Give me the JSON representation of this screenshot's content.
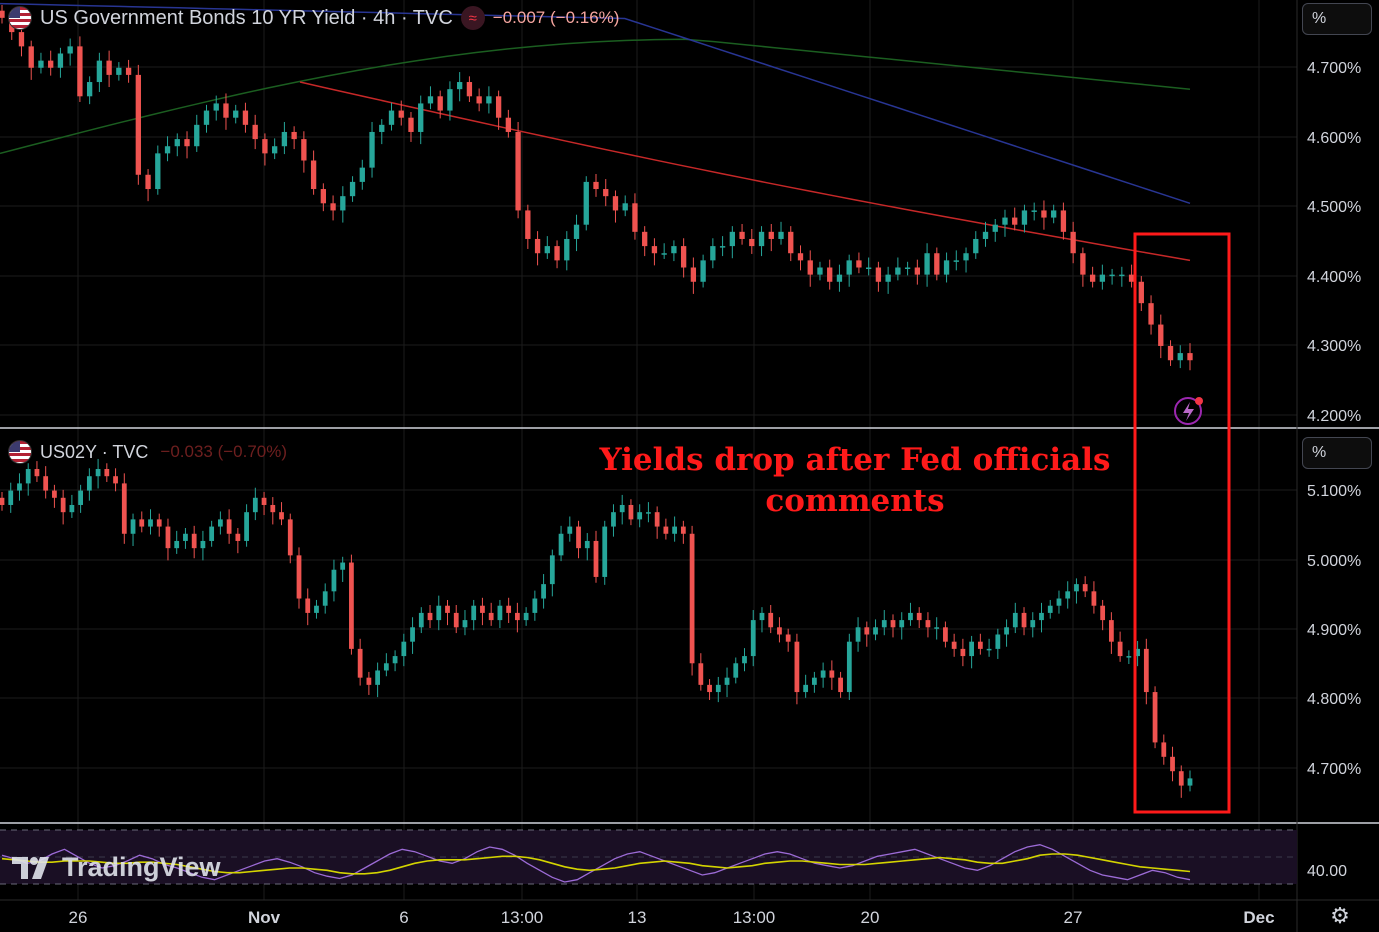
{
  "colors": {
    "up": "#26a69a",
    "down": "#ef5350",
    "ma_fast": "#c62828",
    "ma_mid": "#283593",
    "ma_slow": "#1b5e20",
    "rsi_line": "#9c6bd6",
    "rsi_signal": "#d4d400",
    "annotation_box": "#ff1a1a",
    "grid": "#1c1c1c"
  },
  "top_legend": {
    "title": "US Government Bonds 10 YR Yield · 4h · TVC",
    "indicator_icon": "approx-equal-icon",
    "change": "−0.007 (−0.16%)"
  },
  "bottom_legend": {
    "title": "US02Y · TVC",
    "change": "−0.033 (−0.70%)"
  },
  "unit_buttons": {
    "top": "%",
    "bottom": "%"
  },
  "annotation": {
    "line1": "Yields drop after Fed officials",
    "line2": "comments"
  },
  "branding": {
    "logo_text": "TradingView"
  },
  "settings_icon": "gear-icon",
  "chart_data": [
    {
      "type": "candlestick",
      "name": "US Government Bonds 10 YR Yield",
      "unit": "%",
      "y_ticks": [
        "4.700%",
        "4.600%",
        "4.500%",
        "4.400%",
        "4.300%",
        "4.200%"
      ],
      "ylim": [
        4.19,
        4.78
      ],
      "closes": [
        4.76,
        4.74,
        4.72,
        4.69,
        4.7,
        4.69,
        4.71,
        4.72,
        4.65,
        4.67,
        4.7,
        4.68,
        4.69,
        4.68,
        4.54,
        4.52,
        4.57,
        4.58,
        4.59,
        4.58,
        4.61,
        4.63,
        4.64,
        4.62,
        4.63,
        4.61,
        4.59,
        4.57,
        4.58,
        4.6,
        4.59,
        4.56,
        4.52,
        4.5,
        4.49,
        4.51,
        4.53,
        4.55,
        4.6,
        4.61,
        4.63,
        4.62,
        4.6,
        4.64,
        4.65,
        4.63,
        4.66,
        4.67,
        4.65,
        4.64,
        4.65,
        4.62,
        4.6,
        4.49,
        4.45,
        4.43,
        4.44,
        4.42,
        4.45,
        4.47,
        4.53,
        4.52,
        4.51,
        4.49,
        4.5,
        4.46,
        4.44,
        4.43,
        4.43,
        4.44,
        4.41,
        4.39,
        4.42,
        4.44,
        4.44,
        4.46,
        4.45,
        4.44,
        4.46,
        4.45,
        4.46,
        4.43,
        4.42,
        4.4,
        4.41,
        4.39,
        4.4,
        4.42,
        4.41,
        4.41,
        4.39,
        4.4,
        4.41,
        4.41,
        4.4,
        4.43,
        4.4,
        4.42,
        4.42,
        4.43,
        4.45,
        4.46,
        4.47,
        4.48,
        4.47,
        4.49,
        4.49,
        4.48,
        4.49,
        4.46,
        4.43,
        4.4,
        4.39,
        4.4,
        4.4,
        4.4,
        4.39,
        4.36,
        4.33,
        4.3,
        4.28,
        4.29,
        4.28
      ],
      "ma_fast_end": [
        4.67,
        4.42
      ],
      "ma_mid_end": [
        4.8,
        4.5
      ],
      "ma_slow": {
        "start": 4.57,
        "peak": 4.73,
        "end": 4.66
      }
    },
    {
      "type": "candlestick",
      "name": "US02Y",
      "unit": "%",
      "y_ticks": [
        "5.100%",
        "5.000%",
        "4.900%",
        "4.800%",
        "4.700%"
      ],
      "ylim": [
        4.65,
        5.15
      ],
      "closes": [
        5.08,
        5.1,
        5.11,
        5.13,
        5.12,
        5.1,
        5.09,
        5.07,
        5.08,
        5.1,
        5.12,
        5.13,
        5.12,
        5.11,
        5.04,
        5.06,
        5.05,
        5.06,
        5.05,
        5.02,
        5.03,
        5.04,
        5.02,
        5.03,
        5.05,
        5.06,
        5.04,
        5.03,
        5.07,
        5.09,
        5.08,
        5.07,
        5.06,
        5.01,
        4.95,
        4.93,
        4.94,
        4.96,
        4.99,
        5.0,
        4.88,
        4.84,
        4.83,
        4.85,
        4.86,
        4.87,
        4.89,
        4.91,
        4.93,
        4.92,
        4.94,
        4.93,
        4.91,
        4.92,
        4.94,
        4.93,
        4.92,
        4.94,
        4.93,
        4.92,
        4.93,
        4.95,
        4.97,
        5.01,
        5.04,
        5.05,
        5.02,
        5.03,
        4.98,
        5.05,
        5.07,
        5.08,
        5.06,
        5.07,
        5.07,
        5.05,
        5.04,
        5.05,
        5.04,
        4.86,
        4.83,
        4.82,
        4.83,
        4.84,
        4.86,
        4.87,
        4.92,
        4.93,
        4.91,
        4.9,
        4.89,
        4.82,
        4.83,
        4.84,
        4.85,
        4.84,
        4.82,
        4.89,
        4.91,
        4.9,
        4.91,
        4.92,
        4.91,
        4.92,
        4.93,
        4.92,
        4.91,
        4.91,
        4.89,
        4.88,
        4.87,
        4.89,
        4.88,
        4.88,
        4.9,
        4.91,
        4.93,
        4.91,
        4.92,
        4.93,
        4.94,
        4.95,
        4.96,
        4.97,
        4.96,
        4.94,
        4.92,
        4.89,
        4.87,
        4.87,
        4.88,
        4.82,
        4.75,
        4.73,
        4.71,
        4.69,
        4.7
      ],
      "signal_line_present": false
    },
    {
      "type": "line",
      "name": "RSI",
      "y_ticks": [
        "40.00"
      ],
      "ylim": [
        20,
        80
      ],
      "series": [
        {
          "role": "rsi",
          "values": [
            55,
            52,
            48,
            50,
            56,
            60,
            54,
            48,
            44,
            46,
            50,
            55,
            52,
            47,
            44,
            40,
            36,
            34,
            38,
            42,
            46,
            50,
            52,
            49,
            45,
            40,
            37,
            35,
            38,
            44,
            50,
            56,
            60,
            58,
            54,
            50,
            48,
            52,
            58,
            62,
            60,
            55,
            48,
            42,
            36,
            32,
            34,
            40,
            46,
            52,
            56,
            58,
            54,
            50,
            46,
            42,
            38,
            40,
            44,
            48,
            52,
            56,
            58,
            56,
            52,
            48,
            46,
            44,
            46,
            50,
            54,
            56,
            58,
            60,
            56,
            52,
            48,
            44,
            42,
            46,
            52,
            58,
            62,
            64,
            60,
            54,
            48,
            42,
            38,
            36,
            34,
            38,
            42,
            40,
            36,
            34
          ]
        },
        {
          "role": "signal",
          "values": [
            52,
            51,
            50,
            49,
            49,
            50,
            50,
            50,
            49,
            48,
            48,
            49,
            49,
            48,
            47,
            45,
            43,
            41,
            40,
            40,
            41,
            42,
            43,
            44,
            44,
            43,
            42,
            40,
            39,
            39,
            40,
            42,
            45,
            48,
            50,
            51,
            51,
            51,
            52,
            53,
            54,
            54,
            53,
            51,
            48,
            45,
            43,
            42,
            43,
            44,
            46,
            48,
            49,
            50,
            49,
            48,
            46,
            45,
            44,
            45,
            46,
            48,
            49,
            50,
            50,
            49,
            48,
            47,
            47,
            47,
            48,
            49,
            50,
            51,
            52,
            53,
            52,
            51,
            49,
            48,
            48,
            50,
            52,
            55,
            56,
            56,
            55,
            53,
            51,
            49,
            47,
            45,
            44,
            43,
            42,
            41
          ]
        }
      ]
    }
  ],
  "x_axis": {
    "labels": [
      "26",
      "Nov",
      "6",
      "13:00",
      "13",
      "13:00",
      "20",
      "27",
      "Dec"
    ],
    "bold": [
      false,
      true,
      false,
      false,
      false,
      false,
      false,
      false,
      true
    ]
  }
}
